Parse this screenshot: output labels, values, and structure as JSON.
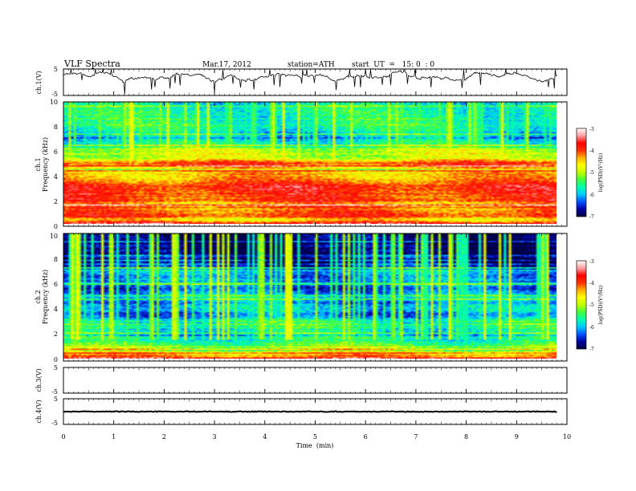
{
  "header": {
    "title": "VLF Spectra",
    "date": "Mar.17, 2012",
    "station": "station=ATH",
    "start": "start  UT  =   15: 0  : 0"
  },
  "chart_data": [
    {
      "type": "line",
      "panel": "ch1-waveform",
      "ylabel": "ch.1(V)",
      "ylim": [
        -5,
        5
      ],
      "ytick_labels": [
        "5",
        "-5"
      ],
      "xlim": [
        0,
        10
      ],
      "samples_per_min": 60,
      "end_min": 9.8,
      "seed": 7
    },
    {
      "type": "heatmap",
      "panel": "ch1-spectrogram",
      "ylabel_top": "ch.1",
      "ylabel": "Frequency  (kHz)",
      "ylim": [
        0,
        10
      ],
      "ytick_labels": [
        "0",
        "2",
        "4",
        "6",
        "8",
        "10"
      ],
      "xlim": [
        0,
        9.8
      ],
      "time_bins": 196,
      "freq_bins": 100,
      "seed": 11,
      "base_profile": {
        "freq_khz": [
          0.0,
          0.3,
          0.5,
          1.0,
          1.5,
          2.0,
          2.5,
          3.0,
          3.5,
          4.0,
          4.5,
          5.0,
          5.5,
          6.0,
          6.5,
          7.0,
          8.0,
          9.0,
          10.0
        ],
        "log_psd": [
          -3.5,
          -4.7,
          -4.0,
          -4.1,
          -4.3,
          -4.1,
          -3.9,
          -3.8,
          -4.2,
          -4.4,
          -4.5,
          -4.0,
          -5.1,
          -4.9,
          -5.6,
          -5.9,
          -5.6,
          -5.6,
          -5.8
        ]
      }
    },
    {
      "type": "heatmap",
      "panel": "ch2-spectrogram",
      "ylabel_top": "ch.2",
      "ylabel": "Frequency  (kHz)",
      "ylim": [
        0,
        10
      ],
      "ytick_labels": [
        "0",
        "2",
        "4",
        "6",
        "8",
        "10"
      ],
      "xlim": [
        0,
        9.8
      ],
      "time_bins": 196,
      "freq_bins": 100,
      "seed": 23,
      "base_profile": {
        "freq_khz": [
          0.0,
          0.3,
          0.6,
          1.0,
          1.5,
          2.0,
          2.5,
          3.0,
          3.5,
          4.0,
          4.5,
          5.0,
          5.5,
          6.0,
          6.5,
          7.0,
          7.5,
          8.0,
          9.0,
          10.0
        ],
        "log_psd": [
          -4.1,
          -4.3,
          -4.8,
          -5.2,
          -5.6,
          -5.9,
          -5.7,
          -5.6,
          -6.3,
          -5.9,
          -6.2,
          -5.8,
          -6.4,
          -6.1,
          -6.2,
          -6.0,
          -6.6,
          -6.8,
          -6.9,
          -6.9
        ]
      }
    },
    {
      "type": "line",
      "panel": "ch3-waveform",
      "ylabel": "ch.3(V)",
      "ylim": [
        -5,
        5
      ],
      "ytick_labels": [
        "5",
        "-5"
      ],
      "xlim": [
        0,
        10
      ],
      "values": []
    },
    {
      "type": "line",
      "panel": "ch4-waveform",
      "ylabel": "ch.4(V)",
      "ylim": [
        -5,
        5
      ],
      "ytick_labels": [
        "5",
        "-5"
      ],
      "xlim": [
        0,
        10
      ],
      "end_min": 9.8,
      "level": 0,
      "noise_amplitude": 0.15
    }
  ],
  "x_axis": {
    "label": "Time  (min)",
    "range": [
      0,
      10
    ],
    "tick_labels": [
      "0",
      "1",
      "2",
      "3",
      "4",
      "5",
      "6",
      "7",
      "8",
      "9",
      "10"
    ]
  },
  "colorbar": {
    "label": "log(PSD)(V²/Hz)",
    "range": [
      -7,
      -3
    ],
    "tick_labels": [
      "-3",
      "-4",
      "-5",
      "-6",
      "-7"
    ],
    "colors": [
      "#000040",
      "#0000a0",
      "#0050ff",
      "#00c8ff",
      "#00ffb0",
      "#40ff40",
      "#c0ff00",
      "#ffff00",
      "#ffb000",
      "#ff3000",
      "#ff0000",
      "#ffa0a0",
      "#ffffff"
    ]
  }
}
